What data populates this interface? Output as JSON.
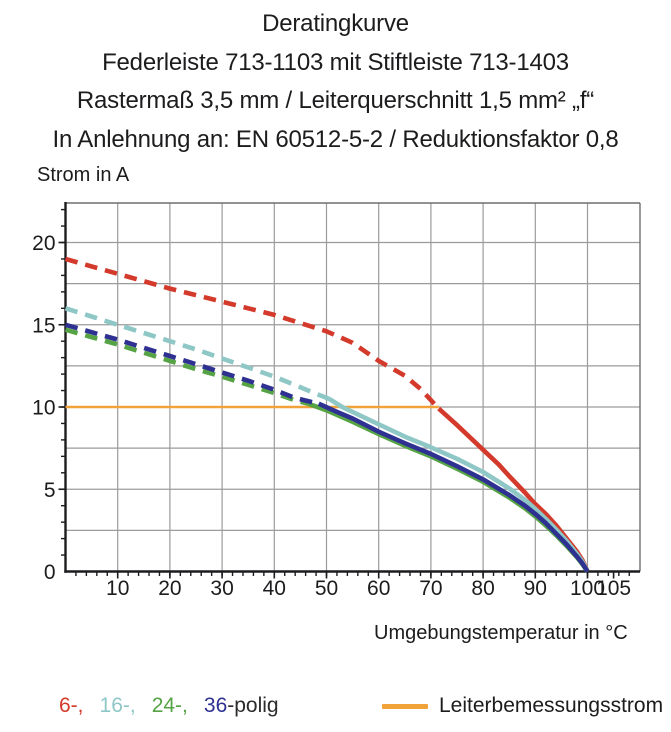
{
  "title": {
    "line1": "Deratingkurve",
    "line2": "Federleiste 713-1103 mit Stiftleiste 713-1403",
    "line3": "Rastermaß 3,5 mm / Leiterquerschnitt 1,5 mm² „f“",
    "line4": "In Anlehnung an: EN 60512-5-2 / Reduktionsfaktor 0,8"
  },
  "chart_data": {
    "type": "line",
    "title": "Deratingkurve",
    "xlabel": "Umgebungstemperatur in °C",
    "ylabel": "Strom in A",
    "xlim": [
      0,
      110
    ],
    "ylim": [
      0,
      22.4
    ],
    "grid": true,
    "x_grid_step": 10,
    "y_grid_step": 2.5,
    "x_minor_tick_step": 2,
    "y_minor_tick_step": 1,
    "x_ticks": [
      {
        "value": 10,
        "label": "10"
      },
      {
        "value": 20,
        "label": "20"
      },
      {
        "value": 30,
        "label": "30"
      },
      {
        "value": 40,
        "label": "40"
      },
      {
        "value": 50,
        "label": "50"
      },
      {
        "value": 60,
        "label": "60"
      },
      {
        "value": 70,
        "label": "70"
      },
      {
        "value": 80,
        "label": "80"
      },
      {
        "value": 90,
        "label": "90"
      },
      {
        "value": 100,
        "label": "100"
      },
      {
        "value": 105,
        "label": "105"
      }
    ],
    "y_ticks": [
      {
        "value": 0,
        "label": "0"
      },
      {
        "value": 5,
        "label": "5"
      },
      {
        "value": 10,
        "label": "10"
      },
      {
        "value": 15,
        "label": "15"
      },
      {
        "value": 20,
        "label": "20"
      }
    ],
    "colors": {
      "grid": "#9b9b9b",
      "frame": "#6f6f6f",
      "axis": "#1c1c1e"
    },
    "series": [
      {
        "name": "Leiterbemessungsstrom",
        "color": "#f1a238",
        "width": 2.4,
        "dashed_points": [],
        "solid_points": [
          [
            0,
            10
          ],
          [
            71.5,
            10
          ]
        ]
      },
      {
        "name": "6-polig",
        "color": "#d43a2b",
        "width": 4.6,
        "dashed_points": [
          [
            0,
            19
          ],
          [
            5,
            18.55
          ],
          [
            10,
            18.1
          ],
          [
            15,
            17.65
          ],
          [
            20,
            17.2
          ],
          [
            25,
            16.8
          ],
          [
            30,
            16.4
          ],
          [
            35,
            16.0
          ],
          [
            40,
            15.6
          ],
          [
            45,
            15.1
          ],
          [
            50,
            14.6
          ],
          [
            55,
            13.9
          ],
          [
            60,
            12.8
          ],
          [
            65,
            11.9
          ],
          [
            68,
            11.1
          ],
          [
            71.5,
            9.9
          ]
        ],
        "solid_points": [
          [
            71.5,
            9.9
          ],
          [
            75,
            8.9
          ],
          [
            78,
            8.0
          ],
          [
            80,
            7.4
          ],
          [
            83,
            6.5
          ],
          [
            85,
            5.8
          ],
          [
            88,
            4.8
          ],
          [
            90,
            4.1
          ],
          [
            92,
            3.5
          ],
          [
            94,
            2.8
          ],
          [
            96,
            2.0
          ],
          [
            98,
            1.2
          ],
          [
            99,
            0.7
          ],
          [
            100,
            0
          ]
        ]
      },
      {
        "name": "16-polig",
        "color": "#8fc7c6",
        "width": 4.6,
        "dashed_points": [
          [
            0,
            16
          ],
          [
            5,
            15.5
          ],
          [
            10,
            15.0
          ],
          [
            15,
            14.5
          ],
          [
            20,
            14.0
          ],
          [
            25,
            13.5
          ],
          [
            30,
            12.95
          ],
          [
            35,
            12.4
          ],
          [
            40,
            11.85
          ],
          [
            45,
            11.2
          ],
          [
            48,
            10.8
          ],
          [
            50.5,
            10.5
          ]
        ],
        "solid_points": [
          [
            50.5,
            10.5
          ],
          [
            53,
            10.0
          ],
          [
            55,
            9.7
          ],
          [
            60,
            8.95
          ],
          [
            65,
            8.2
          ],
          [
            70,
            7.55
          ],
          [
            75,
            6.85
          ],
          [
            80,
            6.05
          ],
          [
            85,
            5.05
          ],
          [
            88,
            4.35
          ],
          [
            90,
            3.8
          ],
          [
            92,
            3.2
          ],
          [
            94,
            2.55
          ],
          [
            96,
            1.85
          ],
          [
            98,
            1.05
          ],
          [
            99,
            0.6
          ],
          [
            100,
            0
          ]
        ]
      },
      {
        "name": "24-polig",
        "color": "#55a345",
        "width": 4.6,
        "dashed_points": [
          [
            0,
            14.7
          ],
          [
            5,
            14.25
          ],
          [
            10,
            13.8
          ],
          [
            15,
            13.3
          ],
          [
            20,
            12.8
          ],
          [
            25,
            12.3
          ],
          [
            30,
            11.85
          ],
          [
            35,
            11.35
          ],
          [
            40,
            10.85
          ],
          [
            44,
            10.4
          ],
          [
            46.5,
            10.2
          ]
        ],
        "solid_points": [
          [
            46.5,
            10.2
          ],
          [
            50,
            9.8
          ],
          [
            55,
            9.1
          ],
          [
            60,
            8.35
          ],
          [
            65,
            7.65
          ],
          [
            70,
            7.0
          ],
          [
            75,
            6.25
          ],
          [
            80,
            5.45
          ],
          [
            85,
            4.5
          ],
          [
            88,
            3.85
          ],
          [
            90,
            3.35
          ],
          [
            92,
            2.8
          ],
          [
            94,
            2.2
          ],
          [
            96,
            1.55
          ],
          [
            98,
            0.85
          ],
          [
            99,
            0.45
          ],
          [
            100,
            0
          ]
        ]
      },
      {
        "name": "36-polig",
        "color": "#2e3191",
        "width": 4.6,
        "dashed_points": [
          [
            0,
            15.0
          ],
          [
            5,
            14.55
          ],
          [
            10,
            14.1
          ],
          [
            15,
            13.6
          ],
          [
            20,
            13.1
          ],
          [
            25,
            12.6
          ],
          [
            30,
            12.1
          ],
          [
            35,
            11.6
          ],
          [
            40,
            11.05
          ],
          [
            44,
            10.55
          ],
          [
            48.5,
            10.2
          ]
        ],
        "solid_points": [
          [
            48.5,
            10.2
          ],
          [
            52,
            9.7
          ],
          [
            55,
            9.3
          ],
          [
            60,
            8.5
          ],
          [
            65,
            7.8
          ],
          [
            70,
            7.15
          ],
          [
            75,
            6.4
          ],
          [
            80,
            5.6
          ],
          [
            85,
            4.65
          ],
          [
            88,
            4.0
          ],
          [
            90,
            3.5
          ],
          [
            92,
            2.95
          ],
          [
            94,
            2.3
          ],
          [
            96,
            1.65
          ],
          [
            98,
            0.9
          ],
          [
            99,
            0.5
          ],
          [
            100,
            0
          ]
        ]
      }
    ]
  },
  "legend": {
    "pole_items": [
      {
        "label": "6-,",
        "color": "#d43a2b"
      },
      {
        "label": "16-,",
        "color": "#8fc7c6"
      },
      {
        "label": "24-,",
        "color": "#55a345"
      },
      {
        "label": "36",
        "color": "#2e3191"
      }
    ],
    "pole_suffix": "-polig",
    "suffix_color": "#2b2b2d",
    "rated_current_label": "Leiterbemessungsstrom",
    "rated_current_color": "#f1a238"
  }
}
